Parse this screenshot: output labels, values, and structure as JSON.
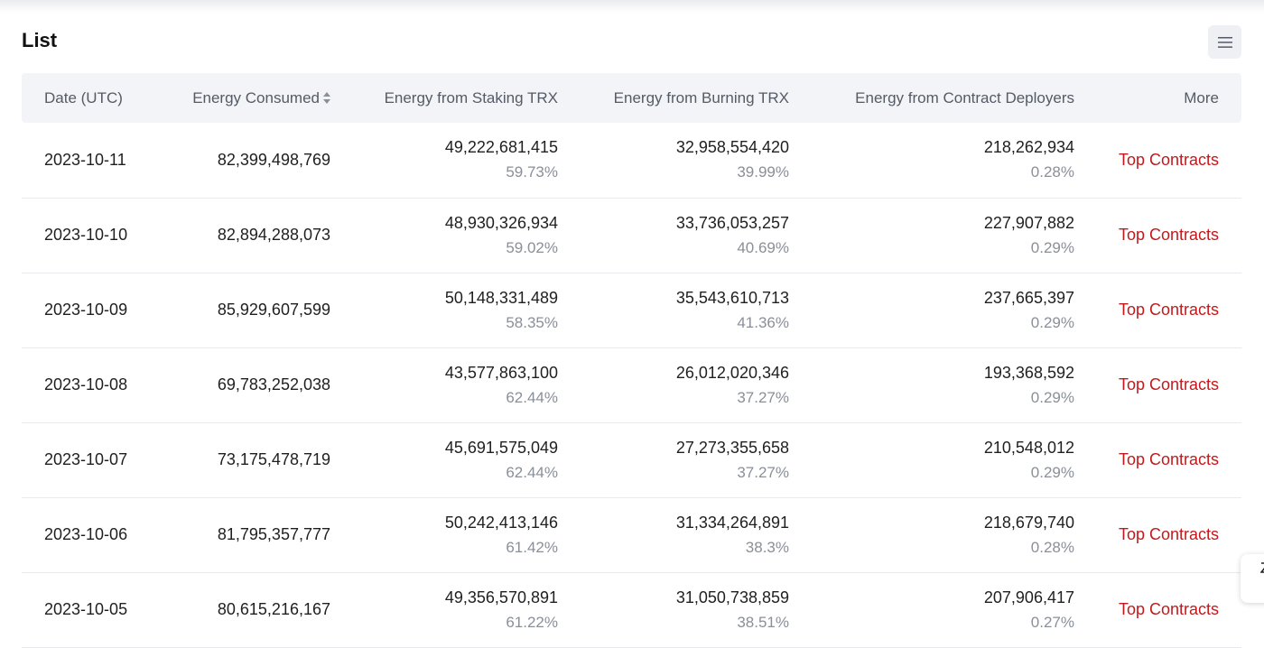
{
  "section": {
    "title": "List"
  },
  "header_menu_icon": "hamburger-menu-icon",
  "columns": {
    "date": "Date (UTC)",
    "consumed": "Energy Consumed",
    "staking": "Energy from Staking TRX",
    "burning": "Energy from Burning TRX",
    "deployers": "Energy from Contract Deployers",
    "more": "More"
  },
  "link_color": "#c2191c",
  "rows": [
    {
      "date": "2023-10-11",
      "consumed": "82,399,498,769",
      "staking": "49,222,681,415",
      "staking_pct": "59.73%",
      "burning": "32,958,554,420",
      "burning_pct": "39.99%",
      "deployers": "218,262,934",
      "deployers_pct": "0.28%",
      "more": "Top Contracts"
    },
    {
      "date": "2023-10-10",
      "consumed": "82,894,288,073",
      "staking": "48,930,326,934",
      "staking_pct": "59.02%",
      "burning": "33,736,053,257",
      "burning_pct": "40.69%",
      "deployers": "227,907,882",
      "deployers_pct": "0.29%",
      "more": "Top Contracts"
    },
    {
      "date": "2023-10-09",
      "consumed": "85,929,607,599",
      "staking": "50,148,331,489",
      "staking_pct": "58.35%",
      "burning": "35,543,610,713",
      "burning_pct": "41.36%",
      "deployers": "237,665,397",
      "deployers_pct": "0.29%",
      "more": "Top Contracts"
    },
    {
      "date": "2023-10-08",
      "consumed": "69,783,252,038",
      "staking": "43,577,863,100",
      "staking_pct": "62.44%",
      "burning": "26,012,020,346",
      "burning_pct": "37.27%",
      "deployers": "193,368,592",
      "deployers_pct": "0.29%",
      "more": "Top Contracts"
    },
    {
      "date": "2023-10-07",
      "consumed": "73,175,478,719",
      "staking": "45,691,575,049",
      "staking_pct": "62.44%",
      "burning": "27,273,355,658",
      "burning_pct": "37.27%",
      "deployers": "210,548,012",
      "deployers_pct": "0.29%",
      "more": "Top Contracts"
    },
    {
      "date": "2023-10-06",
      "consumed": "81,795,357,777",
      "staking": "50,242,413,146",
      "staking_pct": "61.42%",
      "burning": "31,334,264,891",
      "burning_pct": "38.3%",
      "deployers": "218,679,740",
      "deployers_pct": "0.28%",
      "more": "Top Contracts"
    },
    {
      "date": "2023-10-05",
      "consumed": "80,615,216,167",
      "staking": "49,356,570,891",
      "staking_pct": "61.22%",
      "burning": "31,050,738,859",
      "burning_pct": "38.51%",
      "deployers": "207,906,417",
      "deployers_pct": "0.27%",
      "more": "Top Contracts"
    }
  ]
}
